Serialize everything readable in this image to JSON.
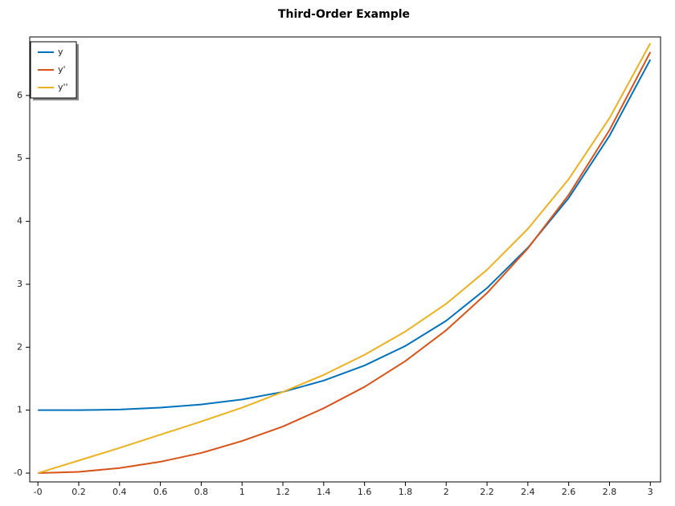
{
  "chart_data": {
    "type": "line",
    "title": "Third-Order Example",
    "x": [
      0,
      0.2,
      0.4,
      0.6,
      0.8,
      1,
      1.2,
      1.4,
      1.6,
      1.8,
      2,
      2.2,
      2.4,
      2.6,
      2.8,
      3
    ],
    "series": [
      {
        "name": "y",
        "color": "#0072bd",
        "values": [
          1,
          1.0,
          1.01,
          1.04,
          1.09,
          1.17,
          1.29,
          1.47,
          1.71,
          2.02,
          2.42,
          2.94,
          3.58,
          4.37,
          5.36,
          6.57
        ]
      },
      {
        "name": "y'",
        "color": "#d95319",
        "values": [
          0,
          0.02,
          0.08,
          0.18,
          0.32,
          0.51,
          0.74,
          1.03,
          1.37,
          1.78,
          2.27,
          2.86,
          3.57,
          4.42,
          5.45,
          6.69
        ]
      },
      {
        "name": "y''",
        "color": "#edb120",
        "values": [
          0,
          0.2,
          0.4,
          0.61,
          0.82,
          1.04,
          1.29,
          1.56,
          1.88,
          2.25,
          2.69,
          3.23,
          3.88,
          4.67,
          5.64,
          6.83
        ]
      }
    ],
    "xlim": [
      -0.04,
      3.05
    ],
    "ylim": [
      -0.14,
      6.93
    ],
    "xticks": [
      {
        "value": 0,
        "label": "-0"
      },
      0.2,
      0.4,
      0.6,
      0.8,
      1,
      1.2,
      1.4,
      1.6,
      1.8,
      2,
      2.2,
      2.4,
      2.6,
      2.8,
      3
    ],
    "yticks": [
      {
        "value": 0,
        "label": "-0"
      },
      1,
      2,
      3,
      4,
      5,
      6
    ],
    "legend": "top-left"
  }
}
